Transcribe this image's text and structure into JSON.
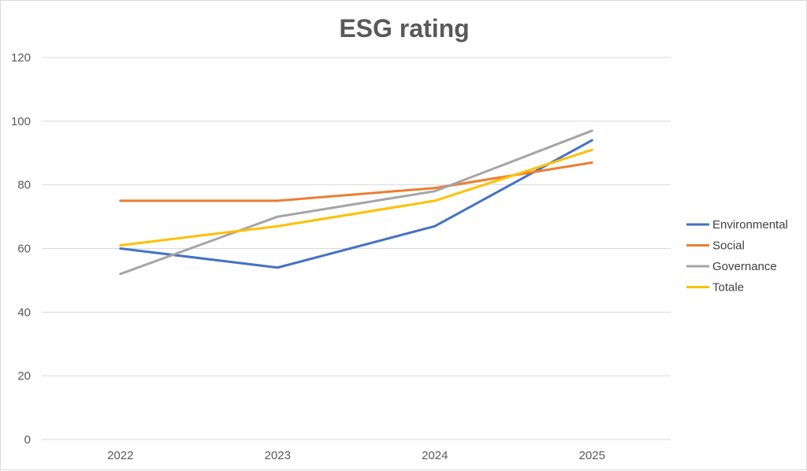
{
  "chart_data": {
    "type": "line",
    "title": "ESG rating",
    "xlabel": "",
    "ylabel": "",
    "categories": [
      "2022",
      "2023",
      "2024",
      "2025"
    ],
    "y_ticks": [
      "0",
      "20",
      "40",
      "60",
      "80",
      "100",
      "120"
    ],
    "ylim": [
      0,
      120
    ],
    "grid": true,
    "legend_position": "right",
    "series": [
      {
        "name": "Environmental",
        "color": "#4472C4",
        "values": [
          60,
          54,
          67,
          94
        ]
      },
      {
        "name": "Social",
        "color": "#ED7D31",
        "values": [
          75,
          75,
          79,
          87
        ]
      },
      {
        "name": "Governance",
        "color": "#A5A5A5",
        "values": [
          52,
          70,
          78,
          97
        ]
      },
      {
        "name": "Totale",
        "color": "#FFC000",
        "values": [
          61,
          67,
          75,
          91
        ]
      }
    ]
  }
}
